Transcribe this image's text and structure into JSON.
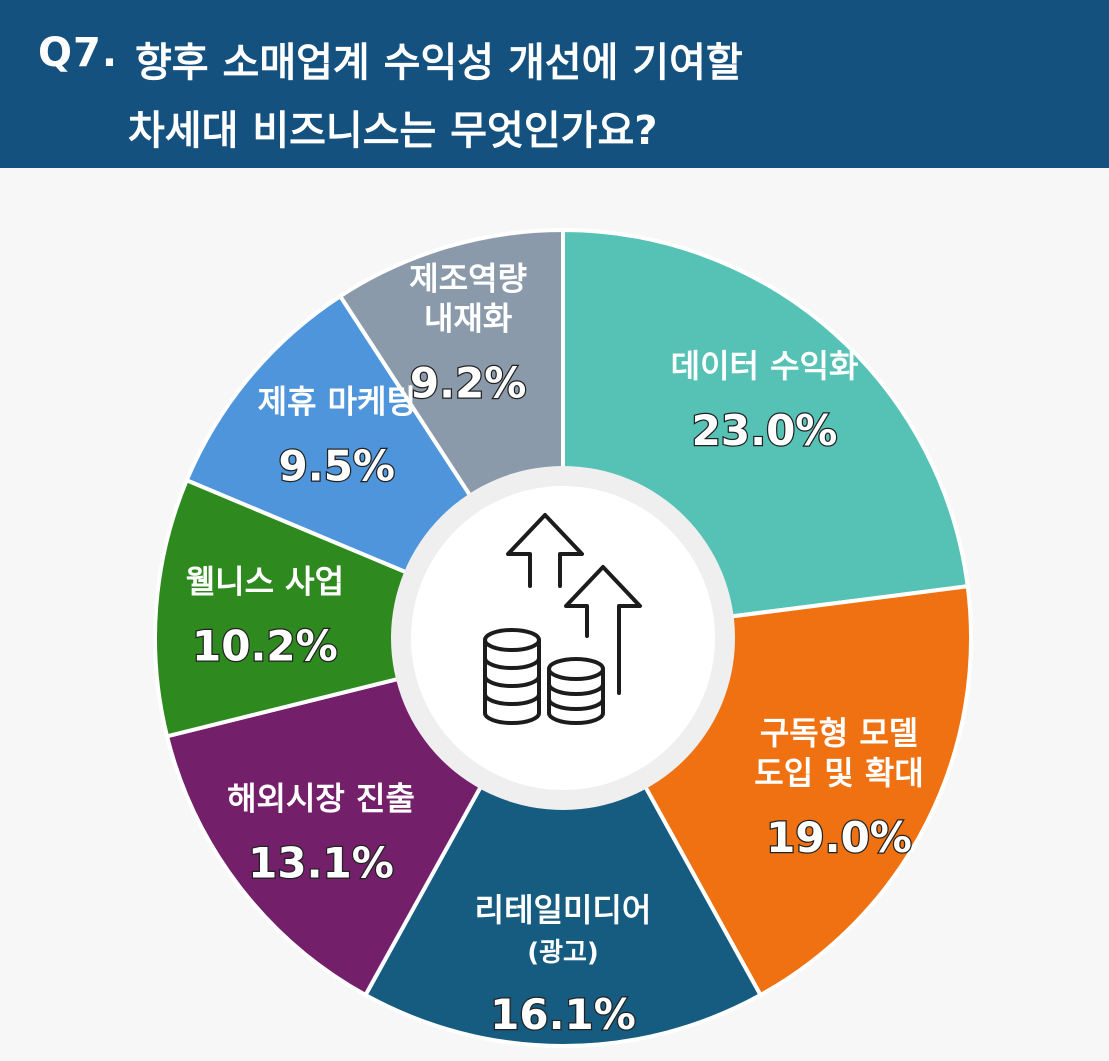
{
  "header": {
    "question_number": "Q7.",
    "title_line1": "향후 소매업계 수익성 개선에 기여할",
    "title_line2": "차세대 비즈니스는 무엇인가요?"
  },
  "center_icon": "money-growth-icon",
  "chart_data": {
    "type": "pie",
    "unit": "%",
    "slices": [
      {
        "label_lines": [
          "데이터 수익화"
        ],
        "value": 23.0,
        "display": "23.0%",
        "color": "#55c2b5"
      },
      {
        "label_lines": [
          "구독형 모델",
          "도입 및 확대"
        ],
        "value": 19.0,
        "display": "19.0%",
        "color": "#ef7111"
      },
      {
        "label_lines": [
          "리테일미디어",
          "(광고)"
        ],
        "value": 16.1,
        "display": "16.1%",
        "color": "#165b80"
      },
      {
        "label_lines": [
          "해외시장 진출"
        ],
        "value": 13.1,
        "display": "13.1%",
        "color": "#741f6a"
      },
      {
        "label_lines": [
          "웰니스 사업"
        ],
        "value": 10.2,
        "display": "10.2%",
        "color": "#2e8a1f"
      },
      {
        "label_lines": [
          "제휴 마케팅"
        ],
        "value": 9.5,
        "display": "9.5%",
        "color": "#4f95db"
      },
      {
        "label_lines": [
          "제조역량",
          "내재화"
        ],
        "value": 9.2,
        "display": "9.2%",
        "color": "#8a9aaa"
      }
    ]
  }
}
